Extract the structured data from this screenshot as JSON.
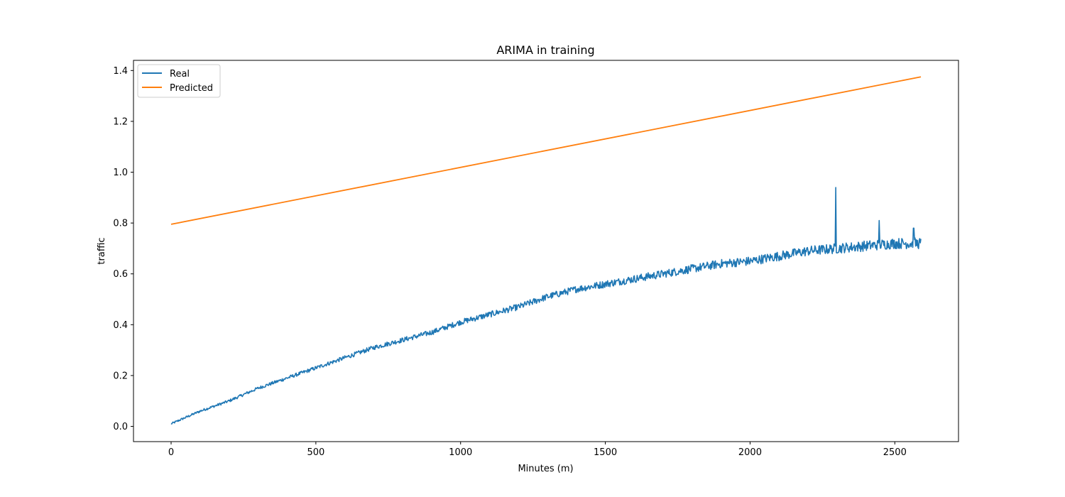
{
  "chart_data": {
    "type": "line",
    "title": "ARIMA in training",
    "xlabel": "Minutes (m)",
    "ylabel": "traffic",
    "xlim": [
      -130,
      2720
    ],
    "ylim": [
      -0.06,
      1.44
    ],
    "xticks": [
      0,
      500,
      1000,
      1500,
      2000,
      2500
    ],
    "yticks": [
      0.0,
      0.2,
      0.4,
      0.6,
      0.8,
      1.0,
      1.2,
      1.4
    ],
    "ytick_labels": [
      "0.0",
      "0.2",
      "0.4",
      "0.6",
      "0.8",
      "1.0",
      "1.2",
      "1.4"
    ],
    "grid": false,
    "legend_position": "top-left",
    "series": [
      {
        "name": "Real",
        "color": "#1f77b4",
        "x": [
          0,
          100,
          200,
          300,
          400,
          500,
          600,
          700,
          800,
          900,
          1000,
          1100,
          1200,
          1300,
          1400,
          1500,
          1600,
          1700,
          1800,
          1900,
          2000,
          2100,
          2200,
          2300,
          2400,
          2500,
          2590
        ],
        "y": [
          0.01,
          0.06,
          0.1,
          0.15,
          0.19,
          0.23,
          0.27,
          0.31,
          0.34,
          0.37,
          0.41,
          0.44,
          0.47,
          0.51,
          0.54,
          0.56,
          0.58,
          0.6,
          0.62,
          0.64,
          0.65,
          0.67,
          0.69,
          0.7,
          0.71,
          0.72,
          0.72
        ],
        "spikes": [
          {
            "x": 2296,
            "y": 0.94
          },
          {
            "x": 2446,
            "y": 0.81
          },
          {
            "x": 2565,
            "y": 0.78
          }
        ]
      },
      {
        "name": "Predicted",
        "color": "#ff7f0e",
        "x": [
          0,
          2590
        ],
        "y": [
          0.795,
          1.375
        ]
      }
    ]
  }
}
